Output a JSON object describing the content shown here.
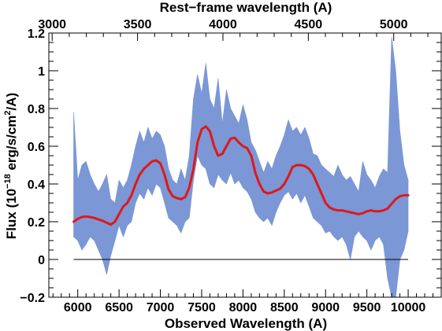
{
  "chart_data": {
    "type": "line",
    "xlabel": "Observed Wavelength (A)",
    "top_xlabel": "Rest−frame wavelength (A)",
    "ylabel_parts": {
      "pre": "Flux (10",
      "sup": "−18",
      "mid": " erg/s/cm",
      "sup2": "2",
      "post": "/A)"
    },
    "xlim": [
      5650,
      10400
    ],
    "ylim": [
      -0.2,
      1.2
    ],
    "x_ticks": [
      6000,
      6500,
      7000,
      7500,
      8000,
      8500,
      9000,
      9500,
      10000
    ],
    "y_ticks": [
      -0.2,
      0,
      0.2,
      0.4,
      0.6,
      0.8,
      1,
      1.2
    ],
    "y_tick_labels": [
      "−0.2",
      "0",
      "0.2",
      "0.4",
      "0.6",
      "0.8",
      "1",
      "1.2"
    ],
    "top_axis": {
      "ticks": [
        3000,
        3500,
        4000,
        4500,
        5000
      ],
      "obs_at_rest": [
        [
          3000,
          5690
        ],
        [
          5000,
          9825
        ]
      ]
    },
    "zero_line": 0,
    "series": [
      {
        "role": "spectrum_band",
        "color": "#7b97d6",
        "x": [
          5950,
          6000,
          6050,
          6100,
          6150,
          6200,
          6250,
          6300,
          6350,
          6400,
          6450,
          6500,
          6550,
          6600,
          6650,
          6700,
          6750,
          6800,
          6850,
          6900,
          6950,
          7000,
          7050,
          7100,
          7150,
          7200,
          7250,
          7300,
          7350,
          7400,
          7450,
          7500,
          7550,
          7600,
          7650,
          7700,
          7750,
          7800,
          7850,
          7900,
          7950,
          8000,
          8050,
          8100,
          8150,
          8200,
          8250,
          8300,
          8350,
          8400,
          8450,
          8500,
          8550,
          8600,
          8650,
          8700,
          8750,
          8800,
          8850,
          8900,
          8950,
          9000,
          9050,
          9100,
          9150,
          9200,
          9250,
          9300,
          9350,
          9400,
          9450,
          9500,
          9550,
          9600,
          9650,
          9700,
          9750,
          9800,
          9850,
          9900,
          9950,
          10000
        ],
        "upper": [
          0.78,
          0.42,
          0.5,
          0.52,
          0.45,
          0.4,
          0.36,
          0.4,
          0.45,
          0.32,
          0.3,
          0.42,
          0.38,
          0.42,
          0.5,
          0.6,
          0.68,
          0.62,
          0.7,
          0.64,
          0.68,
          0.66,
          0.6,
          0.48,
          0.42,
          0.4,
          0.48,
          0.42,
          0.55,
          0.85,
          0.98,
          0.88,
          1.04,
          0.85,
          0.8,
          0.96,
          0.72,
          0.9,
          0.8,
          0.76,
          0.72,
          0.82,
          0.74,
          0.62,
          0.58,
          0.52,
          0.46,
          0.52,
          0.48,
          0.55,
          0.6,
          0.66,
          0.74,
          0.68,
          0.7,
          0.66,
          0.7,
          0.64,
          0.56,
          0.55,
          0.5,
          0.48,
          0.46,
          0.44,
          0.5,
          0.45,
          0.42,
          0.44,
          0.4,
          0.36,
          0.52,
          0.45,
          0.42,
          0.38,
          0.44,
          0.48,
          0.46,
          1.18,
          1.0,
          0.68,
          0.5,
          0.42
        ],
        "lower": [
          0.12,
          0.1,
          0.05,
          0.08,
          0.12,
          0.1,
          0.05,
          0.0,
          -0.08,
          0.02,
          0.1,
          0.18,
          0.12,
          0.18,
          0.2,
          0.3,
          0.35,
          0.32,
          0.38,
          0.34,
          0.4,
          0.38,
          0.3,
          0.22,
          0.2,
          0.18,
          0.14,
          0.2,
          0.22,
          0.42,
          0.55,
          0.5,
          0.48,
          0.4,
          0.38,
          0.45,
          0.42,
          0.4,
          0.46,
          0.4,
          0.42,
          0.38,
          0.36,
          0.32,
          0.25,
          0.22,
          0.2,
          0.22,
          0.18,
          0.25,
          0.3,
          0.34,
          0.36,
          0.32,
          0.35,
          0.3,
          0.34,
          0.28,
          0.22,
          0.2,
          0.18,
          0.14,
          0.15,
          0.12,
          0.1,
          0.12,
          0.08,
          0.0,
          0.12,
          0.15,
          0.12,
          0.1,
          0.05,
          0.1,
          0.12,
          0.08,
          -0.1,
          -0.2,
          -0.2,
          0.0,
          0.05,
          0.15
        ]
      },
      {
        "role": "smoothed_fit",
        "color": "#e01818",
        "x": [
          5950,
          6000,
          6050,
          6100,
          6150,
          6200,
          6250,
          6300,
          6350,
          6400,
          6450,
          6500,
          6550,
          6600,
          6650,
          6700,
          6750,
          6800,
          6850,
          6900,
          6950,
          7000,
          7050,
          7100,
          7150,
          7200,
          7250,
          7300,
          7350,
          7400,
          7450,
          7500,
          7550,
          7600,
          7650,
          7700,
          7750,
          7800,
          7850,
          7900,
          7950,
          8000,
          8050,
          8100,
          8150,
          8200,
          8250,
          8300,
          8350,
          8400,
          8450,
          8500,
          8550,
          8600,
          8650,
          8700,
          8750,
          8800,
          8850,
          8900,
          8950,
          9000,
          9050,
          9100,
          9150,
          9200,
          9250,
          9300,
          9350,
          9400,
          9450,
          9500,
          9550,
          9600,
          9650,
          9700,
          9750,
          9800,
          9850,
          9900,
          9950,
          10000
        ],
        "y": [
          0.2,
          0.215,
          0.225,
          0.228,
          0.225,
          0.22,
          0.212,
          0.205,
          0.195,
          0.185,
          0.2,
          0.24,
          0.28,
          0.3,
          0.34,
          0.4,
          0.45,
          0.48,
          0.5,
          0.52,
          0.525,
          0.51,
          0.45,
          0.37,
          0.335,
          0.325,
          0.32,
          0.33,
          0.38,
          0.48,
          0.62,
          0.69,
          0.705,
          0.68,
          0.6,
          0.55,
          0.56,
          0.6,
          0.64,
          0.645,
          0.62,
          0.6,
          0.59,
          0.55,
          0.46,
          0.4,
          0.36,
          0.35,
          0.355,
          0.365,
          0.375,
          0.4,
          0.44,
          0.49,
          0.5,
          0.5,
          0.495,
          0.48,
          0.45,
          0.4,
          0.35,
          0.3,
          0.275,
          0.265,
          0.26,
          0.26,
          0.255,
          0.25,
          0.245,
          0.24,
          0.245,
          0.255,
          0.26,
          0.255,
          0.255,
          0.26,
          0.27,
          0.295,
          0.32,
          0.335,
          0.34,
          0.34
        ]
      }
    ]
  }
}
